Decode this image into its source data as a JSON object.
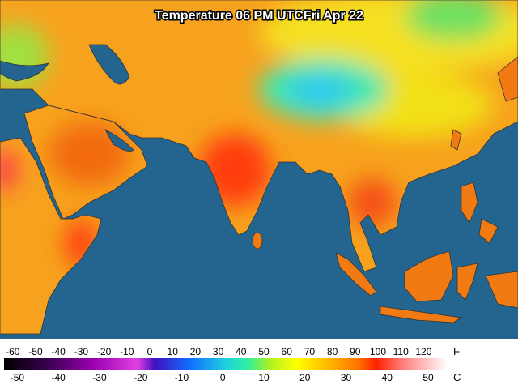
{
  "map": {
    "title": "Temperature 06 PM UTCFri Apr 22",
    "legend": {
      "fahrenheit_unit": "F",
      "celsius_unit": "C",
      "fahrenheit": [
        -60,
        -50,
        -40,
        -30,
        -20,
        -10,
        0,
        10,
        20,
        30,
        40,
        50,
        60,
        70,
        80,
        90,
        100,
        110,
        120
      ],
      "celsius": [
        -50,
        -40,
        -30,
        -20,
        -10,
        0,
        10,
        20,
        30,
        40,
        50
      ]
    }
  }
}
